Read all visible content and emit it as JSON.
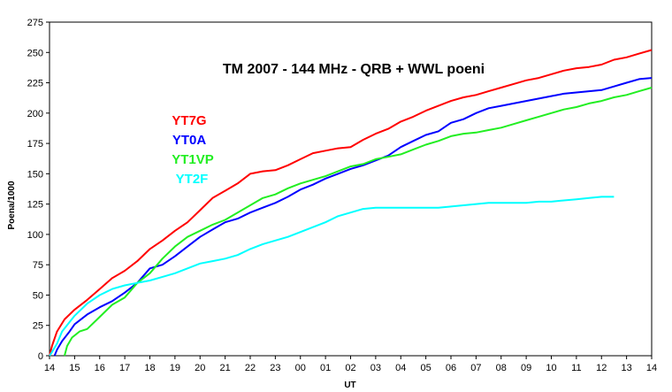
{
  "chart_data": {
    "type": "line",
    "title": "TM 2007 - 144 MHz - QRB + WWL poeni",
    "xlabel": "UT",
    "ylabel": "Poena/1000",
    "x_tick_labels": [
      "14",
      "15",
      "16",
      "17",
      "18",
      "19",
      "20",
      "21",
      "22",
      "23",
      "00",
      "01",
      "02",
      "03",
      "04",
      "05",
      "06",
      "07",
      "08",
      "09",
      "10",
      "11",
      "12",
      "13",
      "14"
    ],
    "xlim": [
      0,
      24
    ],
    "ylim": [
      0,
      275
    ],
    "y_ticks": [
      0,
      25,
      50,
      75,
      100,
      125,
      150,
      175,
      200,
      225,
      250,
      275
    ],
    "grid": false,
    "legend_position": "upper-left",
    "series": [
      {
        "name": "YT7G",
        "color": "#ff0000",
        "x": [
          0,
          0.1,
          0.3,
          0.6,
          1.0,
          1.5,
          2.0,
          2.5,
          3.0,
          3.5,
          4.0,
          4.5,
          5.0,
          5.5,
          6.0,
          6.5,
          7.0,
          7.5,
          8.0,
          8.5,
          9.0,
          9.5,
          10.0,
          10.5,
          11.0,
          11.5,
          12.0,
          12.5,
          13.0,
          13.5,
          14.0,
          14.5,
          15.0,
          15.5,
          16.0,
          16.5,
          17.0,
          17.5,
          18.0,
          18.5,
          19.0,
          19.5,
          20.0,
          20.5,
          21.0,
          21.5,
          22.0,
          22.5,
          23.0,
          23.5,
          24.0
        ],
        "y": [
          0,
          8,
          20,
          30,
          38,
          46,
          55,
          64,
          70,
          78,
          88,
          95,
          103,
          110,
          120,
          130,
          136,
          142,
          150,
          152,
          153,
          157,
          162,
          167,
          169,
          171,
          172,
          178,
          183,
          187,
          193,
          197,
          202,
          206,
          210,
          213,
          215,
          218,
          221,
          224,
          227,
          229,
          232,
          235,
          237,
          238,
          240,
          244,
          246,
          249,
          252
        ]
      },
      {
        "name": "YT0A",
        "color": "#0000ff",
        "x": [
          0.2,
          0.3,
          0.5,
          0.8,
          1.0,
          1.5,
          2.0,
          2.5,
          3.0,
          3.5,
          4.0,
          4.5,
          5.0,
          5.5,
          6.0,
          6.5,
          7.0,
          7.5,
          8.0,
          8.5,
          9.0,
          9.5,
          10.0,
          10.5,
          11.0,
          11.5,
          12.0,
          12.5,
          13.0,
          13.5,
          14.0,
          14.5,
          15.0,
          15.5,
          16.0,
          16.5,
          17.0,
          17.5,
          18.0,
          18.5,
          19.0,
          19.5,
          20.0,
          20.5,
          21.0,
          21.5,
          22.0,
          22.5,
          23.0,
          23.5,
          24.0
        ],
        "y": [
          0,
          5,
          12,
          20,
          26,
          34,
          40,
          45,
          52,
          60,
          72,
          75,
          82,
          90,
          98,
          104,
          110,
          113,
          118,
          122,
          126,
          131,
          137,
          141,
          146,
          150,
          154,
          157,
          161,
          165,
          172,
          177,
          182,
          185,
          192,
          195,
          200,
          204,
          206,
          208,
          210,
          212,
          214,
          216,
          217,
          218,
          219,
          222,
          225,
          228,
          229
        ]
      },
      {
        "name": "YT1VP",
        "color": "#22ee22",
        "x": [
          0.6,
          0.7,
          0.9,
          1.2,
          1.5,
          2.0,
          2.5,
          3.0,
          3.5,
          4.0,
          4.5,
          5.0,
          5.5,
          6.0,
          6.5,
          7.0,
          7.5,
          8.0,
          8.5,
          9.0,
          9.5,
          10.0,
          10.5,
          11.0,
          11.5,
          12.0,
          12.5,
          13.0,
          13.5,
          14.0,
          14.5,
          15.0,
          15.5,
          16.0,
          16.5,
          17.0,
          17.5,
          18.0,
          18.5,
          19.0,
          19.5,
          20.0,
          20.5,
          21.0,
          21.5,
          22.0,
          22.5,
          23.0,
          23.5,
          24.0
        ],
        "y": [
          0,
          8,
          15,
          20,
          22,
          32,
          42,
          48,
          60,
          68,
          80,
          90,
          98,
          103,
          108,
          112,
          118,
          124,
          130,
          133,
          138,
          142,
          145,
          148,
          152,
          156,
          158,
          162,
          164,
          166,
          170,
          174,
          177,
          181,
          183,
          184,
          186,
          188,
          191,
          194,
          197,
          200,
          203,
          205,
          208,
          210,
          213,
          215,
          218,
          221
        ]
      },
      {
        "name": "YT2F",
        "color": "#00ffff",
        "x": [
          0,
          0.1,
          0.3,
          0.5,
          1.0,
          1.5,
          2.0,
          2.5,
          3.0,
          3.5,
          4.0,
          4.5,
          5.0,
          5.5,
          6.0,
          6.5,
          7.0,
          7.5,
          8.0,
          8.5,
          9.0,
          9.5,
          10.0,
          10.5,
          11.0,
          11.5,
          12.0,
          12.5,
          13.0,
          13.5,
          14.0,
          14.5,
          15.0,
          15.5,
          16.0,
          16.5,
          17.0,
          17.5,
          18.0,
          18.5,
          19.0,
          19.5,
          20.0,
          20.5,
          21.0,
          21.5,
          22.0,
          22.5
        ],
        "y": [
          0,
          3,
          10,
          20,
          33,
          43,
          50,
          55,
          58,
          60,
          62,
          65,
          68,
          72,
          76,
          78,
          80,
          83,
          88,
          92,
          95,
          98,
          102,
          106,
          110,
          115,
          118,
          121,
          122,
          122,
          122,
          122,
          122,
          122,
          123,
          124,
          125,
          126,
          126,
          126,
          126,
          127,
          127,
          128,
          129,
          130,
          131,
          131
        ]
      }
    ]
  },
  "legend_entries": [
    "YT7G",
    "YT0A",
    "YT1VP",
    "YT2F"
  ]
}
